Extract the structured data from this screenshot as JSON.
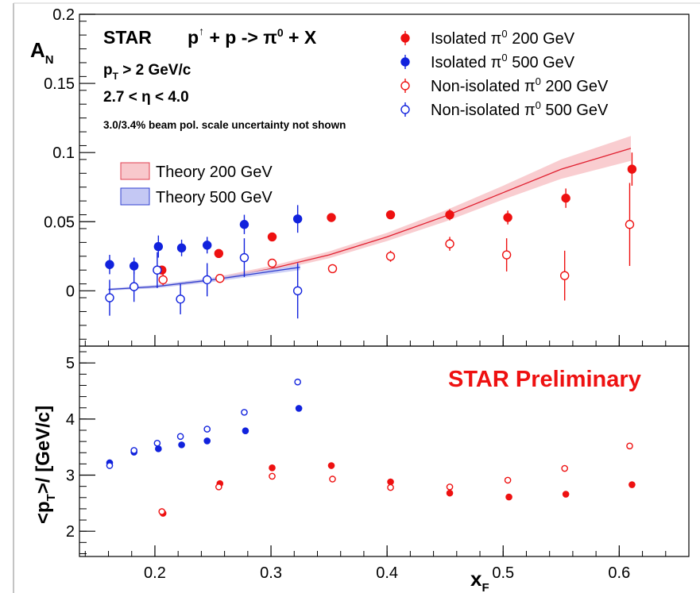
{
  "experiment_label": "STAR",
  "reaction": {
    "lhs": "p",
    "pol": "↑",
    "mid": " + p -> π",
    "sup": "0",
    "rhs": " + X"
  },
  "cuts": {
    "pt_pre": "p",
    "pt_sub": "T",
    "pt_post": " > 2 GeV/c",
    "eta": "2.7 < η < 4.0",
    "note": "3.0/3.4% beam pol. scale uncertainty not shown"
  },
  "preliminary_label": "STAR Preliminary",
  "legend": [
    {
      "pre": "Isolated π",
      "sup": "0",
      "post": " 200 GeV",
      "color": "#ee1111",
      "filled": true
    },
    {
      "pre": "Isolated π",
      "sup": "0",
      "post": " 500 GeV",
      "color": "#1122dd",
      "filled": true
    },
    {
      "pre": "Non-isolated π",
      "sup": "0",
      "post": " 200 GeV",
      "color": "#ee1111",
      "filled": false
    },
    {
      "pre": "Non-isolated π",
      "sup": "0",
      "post": " 500 GeV",
      "color": "#1122dd",
      "filled": false
    }
  ],
  "theory_legend": [
    {
      "label": "Theory 200 GeV",
      "fill": "#f8c8cc",
      "edge": "#e04050"
    },
    {
      "label": "Theory 500 GeV",
      "fill": "#c4c8f4",
      "edge": "#3040d0"
    }
  ],
  "chart_data": [
    {
      "type": "scatter",
      "panel": "top",
      "ylabel": {
        "main": "A",
        "sub": "N"
      },
      "ylim": [
        -0.04,
        0.2
      ],
      "xlim": [
        0.135,
        0.66
      ],
      "yticks": [
        0,
        0.05,
        0.1,
        0.15,
        0.2
      ],
      "ytick_labels": [
        "0",
        "0.05",
        "0.1",
        "0.15",
        "0.2"
      ],
      "series": [
        {
          "name": "Isolated π0 200 GeV",
          "color": "#ee1111",
          "filled": true,
          "x": [
            0.206,
            0.255,
            0.301,
            0.352,
            0.403,
            0.454,
            0.504,
            0.554,
            0.611
          ],
          "y": [
            0.015,
            0.027,
            0.039,
            0.053,
            0.055,
            0.055,
            0.053,
            0.067,
            0.088
          ],
          "err": [
            0.0025,
            0.0025,
            0.0025,
            0.0025,
            0.003,
            0.004,
            0.005,
            0.007,
            0.012
          ]
        },
        {
          "name": "Isolated π0 500 GeV",
          "color": "#1122dd",
          "filled": true,
          "x": [
            0.161,
            0.182,
            0.203,
            0.223,
            0.245,
            0.277,
            0.323
          ],
          "y": [
            0.019,
            0.018,
            0.032,
            0.031,
            0.033,
            0.048,
            0.052
          ],
          "err": [
            0.007,
            0.006,
            0.008,
            0.006,
            0.006,
            0.007,
            0.01
          ]
        },
        {
          "name": "Non-isolated π0 200 GeV",
          "color": "#ee1111",
          "filled": false,
          "x": [
            0.207,
            0.256,
            0.301,
            0.353,
            0.403,
            0.454,
            0.503,
            0.553,
            0.609
          ],
          "y": [
            0.008,
            0.009,
            0.02,
            0.016,
            0.025,
            0.034,
            0.026,
            0.011,
            0.048
          ],
          "err": [
            0.004,
            0.003,
            0.003,
            0.003,
            0.004,
            0.005,
            0.012,
            0.018,
            0.03
          ]
        },
        {
          "name": "Non-isolated π0 500 GeV",
          "color": "#1122dd",
          "filled": false,
          "x": [
            0.161,
            0.182,
            0.202,
            0.222,
            0.245,
            0.277,
            0.323
          ],
          "y": [
            -0.005,
            0.003,
            0.015,
            -0.006,
            0.008,
            0.024,
            0.0
          ],
          "err": [
            0.013,
            0.011,
            0.013,
            0.011,
            0.012,
            0.014,
            0.02
          ]
        }
      ],
      "theory": [
        {
          "name": "Theory 200 GeV",
          "line": "#e02030",
          "band": "#f8c4c8",
          "x": [
            0.16,
            0.2,
            0.25,
            0.3,
            0.35,
            0.4,
            0.45,
            0.5,
            0.55,
            0.61
          ],
          "y": [
            0.001,
            0.003,
            0.008,
            0.016,
            0.026,
            0.039,
            0.054,
            0.071,
            0.088,
            0.103
          ],
          "band_halfwidth": [
            0.0005,
            0.001,
            0.0015,
            0.002,
            0.0025,
            0.003,
            0.004,
            0.005,
            0.007,
            0.009
          ]
        },
        {
          "name": "Theory 500 GeV",
          "line": "#3040d0",
          "band": "#c4c8f4",
          "x": [
            0.16,
            0.2,
            0.25,
            0.3,
            0.325
          ],
          "y": [
            0.001,
            0.003,
            0.008,
            0.014,
            0.017
          ],
          "band_halfwidth": [
            0.0008,
            0.0012,
            0.0015,
            0.0018,
            0.002
          ]
        }
      ]
    },
    {
      "type": "scatter",
      "panel": "bottom",
      "xlabel": {
        "main": "x",
        "sub": "F"
      },
      "ylabel": {
        "pre": "<p",
        "sub": "T",
        "post": ">/ [GeV/c]"
      },
      "xlim": [
        0.135,
        0.66
      ],
      "ylim": [
        1.55,
        5.3
      ],
      "xticks": [
        0.2,
        0.3,
        0.4,
        0.5,
        0.6
      ],
      "xtick_labels": [
        "0.2",
        "0.3",
        "0.4",
        "0.5",
        "0.6"
      ],
      "yticks": [
        2,
        3,
        4,
        5
      ],
      "ytick_labels": [
        "2",
        "3",
        "4",
        "5"
      ],
      "series": [
        {
          "name": "Isolated π0 200 GeV",
          "color": "#ee1111",
          "filled": true,
          "x": [
            0.207,
            0.256,
            0.301,
            0.352,
            0.403,
            0.454,
            0.505,
            0.554,
            0.611
          ],
          "y": [
            2.32,
            2.85,
            3.13,
            3.17,
            2.88,
            2.68,
            2.61,
            2.66,
            2.83
          ]
        },
        {
          "name": "Isolated π0 500 GeV",
          "color": "#1122dd",
          "filled": true,
          "x": [
            0.161,
            0.182,
            0.203,
            0.223,
            0.245,
            0.278,
            0.324
          ],
          "y": [
            3.22,
            3.41,
            3.47,
            3.54,
            3.61,
            3.79,
            4.19
          ]
        },
        {
          "name": "Non-isolated π0 200 GeV",
          "color": "#ee1111",
          "filled": false,
          "x": [
            0.206,
            0.255,
            0.301,
            0.353,
            0.403,
            0.454,
            0.504,
            0.553,
            0.609
          ],
          "y": [
            2.35,
            2.79,
            2.98,
            2.93,
            2.78,
            2.79,
            2.91,
            3.12,
            3.52
          ]
        },
        {
          "name": "Non-isolated π0 500 GeV",
          "color": "#1122dd",
          "filled": false,
          "x": [
            0.161,
            0.182,
            0.202,
            0.222,
            0.245,
            0.277,
            0.323
          ],
          "y": [
            3.17,
            3.44,
            3.57,
            3.69,
            3.82,
            4.12,
            4.66
          ]
        }
      ]
    }
  ]
}
